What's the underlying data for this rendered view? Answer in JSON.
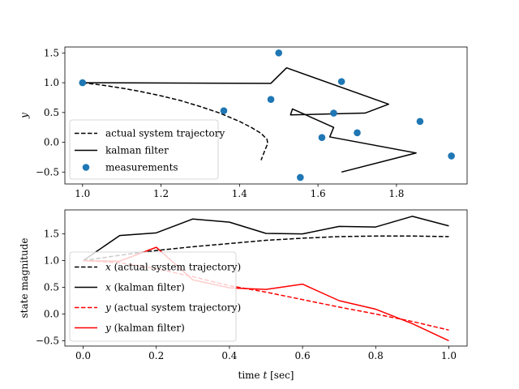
{
  "chart_data": [
    {
      "type": "scatter",
      "xlabel": "",
      "ylabel": "y",
      "xlim": [
        0.955,
        1.98
      ],
      "ylim": [
        -0.7,
        1.6
      ],
      "xticks": [
        1.0,
        1.2,
        1.4,
        1.6,
        1.8
      ],
      "xtick_labels": [
        "1.0",
        "1.2",
        "1.4",
        "1.6",
        "1.8"
      ],
      "yticks": [
        -0.5,
        0.0,
        0.5,
        1.0,
        1.5
      ],
      "ytick_labels": [
        "−0.5",
        "0.0",
        "0.5",
        "1.0",
        "1.5"
      ],
      "legend_position": "lower-left",
      "series": [
        {
          "name": "actual system trajectory",
          "style": "dashed",
          "color": "#000000",
          "x": [
            1.0,
            1.05,
            1.1,
            1.15,
            1.2,
            1.25,
            1.3,
            1.35,
            1.4,
            1.43,
            1.455,
            1.47,
            1.472,
            1.465,
            1.455
          ],
          "y": [
            1.0,
            0.96,
            0.91,
            0.85,
            0.78,
            0.7,
            0.6,
            0.49,
            0.35,
            0.25,
            0.15,
            0.05,
            -0.02,
            -0.13,
            -0.3
          ]
        },
        {
          "name": "kalman filter",
          "style": "solid",
          "color": "#000000",
          "x": [
            1.0,
            1.48,
            1.52,
            1.78,
            1.72,
            1.53,
            1.535,
            1.64,
            1.63,
            1.85,
            1.66
          ],
          "y": [
            1.0,
            0.99,
            1.25,
            0.64,
            0.49,
            0.46,
            0.56,
            0.25,
            0.09,
            -0.18,
            -0.5
          ]
        },
        {
          "name": "measurements",
          "style": "markers",
          "color": "#1f77b4",
          "x": [
            1.0,
            1.5,
            1.66,
            1.36,
            1.48,
            1.64,
            1.61,
            1.7,
            1.86,
            1.94,
            1.555
          ],
          "y": [
            1.0,
            1.5,
            1.02,
            0.53,
            0.72,
            0.49,
            0.08,
            0.16,
            0.35,
            -0.23,
            -0.59
          ]
        }
      ]
    },
    {
      "type": "line",
      "xlabel": "time t [sec]",
      "ylabel": "state magnitude",
      "xlim": [
        -0.05,
        1.05
      ],
      "ylim": [
        -0.6,
        1.95
      ],
      "xticks": [
        0.0,
        0.2,
        0.4,
        0.6,
        0.8,
        1.0
      ],
      "xtick_labels": [
        "0.0",
        "0.2",
        "0.4",
        "0.6",
        "0.8",
        "1.0"
      ],
      "yticks": [
        -0.5,
        0.0,
        0.5,
        1.0,
        1.5
      ],
      "ytick_labels": [
        "−0.5",
        "0.0",
        "0.5",
        "1.0",
        "1.5"
      ],
      "legend_position": "lower-left",
      "x": [
        0.0,
        0.1,
        0.2,
        0.3,
        0.4,
        0.5,
        0.6,
        0.7,
        0.8,
        0.9,
        1.0
      ],
      "series": [
        {
          "name_var": "x",
          "name_rest": " (actual system trajectory)",
          "style": "dashed",
          "color": "#000000",
          "values": [
            1.0,
            1.1,
            1.19,
            1.26,
            1.32,
            1.38,
            1.42,
            1.45,
            1.46,
            1.46,
            1.45
          ]
        },
        {
          "name_var": "x",
          "name_rest": " (kalman filter)",
          "style": "solid",
          "color": "#000000",
          "values": [
            1.0,
            1.47,
            1.52,
            1.78,
            1.72,
            1.51,
            1.5,
            1.64,
            1.63,
            1.83,
            1.65
          ]
        },
        {
          "name_var": "y",
          "name_rest": " (actual system trajectory)",
          "style": "dashed",
          "color": "#ff0000",
          "values": [
            1.0,
            0.96,
            0.85,
            0.7,
            0.53,
            0.41,
            0.27,
            0.13,
            0.0,
            -0.14,
            -0.3
          ]
        },
        {
          "name_var": "y",
          "name_rest": " (kalman filter)",
          "style": "solid",
          "color": "#ff0000",
          "values": [
            1.0,
            0.99,
            1.25,
            0.64,
            0.49,
            0.46,
            0.56,
            0.25,
            0.09,
            -0.18,
            -0.5
          ]
        }
      ],
      "xlabel_var": "t",
      "xlabel_pre": "time ",
      "xlabel_post": " [sec]"
    }
  ]
}
